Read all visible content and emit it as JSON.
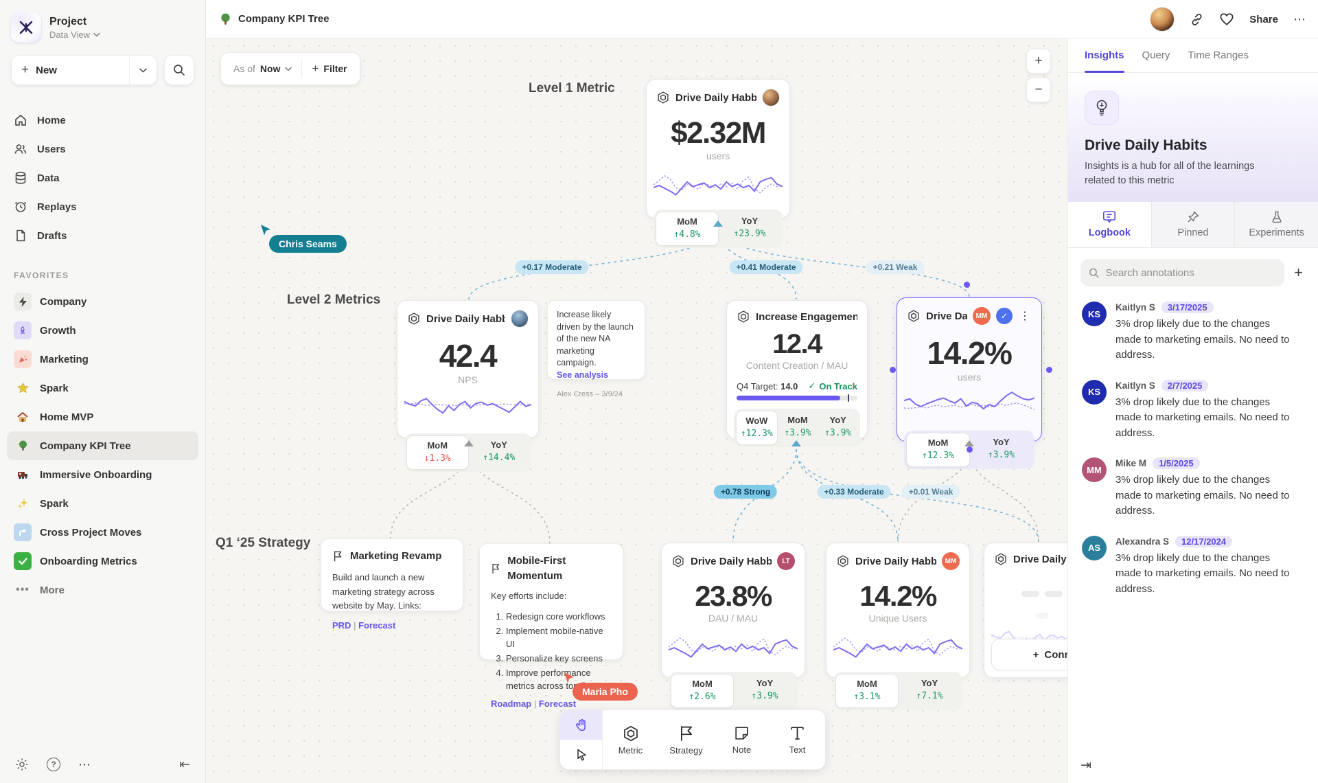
{
  "topbar": {
    "title": "Company KPI Tree",
    "share_label": "Share",
    "more_label": "⋯",
    "icons": [
      "tree-icon",
      "avatar",
      "link-icon",
      "heart-icon",
      "ellipsis-icon"
    ]
  },
  "sidebar": {
    "project": {
      "name": "Project",
      "view": "Data View"
    },
    "new_button": {
      "label": "New",
      "plus": "+"
    },
    "nav": [
      {
        "icon": "home-icon",
        "label": "Home"
      },
      {
        "icon": "users-icon",
        "label": "Users"
      },
      {
        "icon": "database-icon",
        "label": "Data"
      },
      {
        "icon": "replay-clock-icon",
        "label": "Replays"
      },
      {
        "icon": "file-icon",
        "label": "Drafts"
      }
    ],
    "favorites_label": "FAVORITES",
    "favorites": [
      {
        "icon": "lightning-icon",
        "label": "Company"
      },
      {
        "icon": "rocket-icon",
        "label": "Growth"
      },
      {
        "icon": "confetti-icon",
        "label": "Marketing"
      },
      {
        "icon": "star-icon",
        "label": "Spark"
      },
      {
        "icon": "house-icon",
        "label": "Home MVP"
      },
      {
        "icon": "tree-icon",
        "label": "Company KPI Tree"
      },
      {
        "icon": "train-icon",
        "label": "Immersive Onboarding"
      },
      {
        "icon": "sparkles-icon",
        "label": "Spark"
      },
      {
        "icon": "curved-arrow-icon",
        "label": "Cross Project Moves"
      },
      {
        "icon": "check-icon",
        "label": "Onboarding Metrics"
      }
    ],
    "more_label": "More"
  },
  "canvas": {
    "asof": {
      "prefix": "As of",
      "value": "Now"
    },
    "filter": {
      "plus": "+",
      "label": "Filter"
    },
    "zoom": {
      "in": "+",
      "out": "−"
    },
    "labels": {
      "level1": "Level 1 Metric",
      "level2": "Level 2 Metrics",
      "q1": "Q1 ‘25 Strategy"
    },
    "cursors": [
      {
        "name": "Chris Seams",
        "color": "#157f92"
      },
      {
        "name": "Maria Pho",
        "color": "#ea6450"
      }
    ],
    "edges": [
      {
        "text": "+0.17 Moderate"
      },
      {
        "text": "+0.41 Moderate"
      },
      {
        "text": "+0.21 Weak"
      },
      {
        "text": "+0.78 Strong"
      },
      {
        "text": "+0.33 Moderate"
      },
      {
        "text": "+0.01 Weak"
      }
    ],
    "cards": {
      "level1": {
        "title": "Drive Daily Habbits",
        "value": "$2.32M",
        "unit": "users",
        "stats": [
          {
            "label": "MoM",
            "value": "↑4.8%",
            "trend": "up"
          },
          {
            "label": "YoY",
            "value": "↑23.9%",
            "trend": "up"
          }
        ]
      },
      "nps": {
        "title": "Drive Daily Habbits",
        "value": "42.4",
        "unit": "NPS",
        "stats": [
          {
            "label": "MoM",
            "value": "↓1.3%",
            "trend": "down"
          },
          {
            "label": "YoY",
            "value": "↑14.4%",
            "trend": "up"
          }
        ]
      },
      "note": {
        "body": "Increase likely driven by the launch of the new NA marketing campaign.",
        "link": "See analysis",
        "author": "Alex Cress – 3/9/24"
      },
      "engagement": {
        "title": "Increase Engagement",
        "value": "12.4",
        "unit": "Content Creation / MAU",
        "target_prefix": "Q4 Target:",
        "target_value": "14.0",
        "status": "On Track",
        "status_check": "✓",
        "progress_pct": 86,
        "stats": [
          {
            "label": "WoW",
            "value": "↑12.3%",
            "trend": "up"
          },
          {
            "label": "MoM",
            "value": "↑3.9%",
            "trend": "up"
          },
          {
            "label": "YoY",
            "value": "↑3.9%",
            "trend": "up"
          }
        ]
      },
      "selected": {
        "title": "Drive Daily Habb..",
        "owner_badge": "MM",
        "badge_color": "#ef6a4e",
        "value": "14.2%",
        "unit": "users",
        "verified_check": "✓",
        "kebab": "⋮",
        "stats": [
          {
            "label": "MoM",
            "value": "↑12.3%",
            "trend": "up"
          },
          {
            "label": "YoY",
            "value": "↑3.9%",
            "trend": "up"
          }
        ]
      },
      "marketing_revamp": {
        "title": "Marketing Revamp",
        "body": "Build and launch a new marketing strategy across website by May. Links:",
        "links": [
          "PRD",
          "Forecast"
        ],
        "link_sep": "|"
      },
      "mobile_first": {
        "title": "Mobile-First Momentum",
        "intro": "Key efforts include:",
        "items": [
          "Redesign core workflows",
          "Implement mobile-native UI",
          "Personalize key screens",
          "Improve performance metrics across top flows"
        ],
        "links": [
          "Roadmap",
          "Forecast"
        ],
        "link_sep": "|"
      },
      "dau": {
        "title": "Drive Daily Habbits",
        "owner_badge": "LT",
        "badge_color": "#b64f6b",
        "value": "23.8%",
        "unit": "DAU / MAU",
        "stats": [
          {
            "label": "MoM",
            "value": "↑2.6%",
            "trend": "up"
          },
          {
            "label": "YoY",
            "value": "↑3.9%",
            "trend": "up"
          }
        ]
      },
      "unique": {
        "title": "Drive Daily Habbits",
        "owner_badge": "MM",
        "badge_color": "#ef6a4e",
        "value": "14.2%",
        "unit": "Unique Users",
        "stats": [
          {
            "label": "MoM",
            "value": "↑3.1%",
            "trend": "up"
          },
          {
            "label": "YoY",
            "value": "↑7.1%",
            "trend": "up"
          }
        ]
      },
      "partial": {
        "title": "Drive Daily Hab",
        "connect_plus": "+",
        "connect_label": "Connect"
      }
    },
    "toolbar": {
      "tools": [
        {
          "icon": "hexagon-metric-icon",
          "label": "Metric"
        },
        {
          "icon": "flag-icon",
          "label": "Strategy"
        },
        {
          "icon": "note-icon",
          "label": "Note"
        },
        {
          "icon": "text-icon",
          "label": "Text"
        }
      ]
    },
    "sparklines": {
      "a": {
        "solid": [
          58,
          52,
          60,
          68,
          78,
          60,
          42,
          55,
          50,
          45,
          58,
          50,
          62,
          42,
          55,
          48,
          58,
          52,
          68,
          42,
          35,
          30,
          48,
          55
        ],
        "dashed": [
          50,
          38,
          25,
          35,
          58,
          65,
          50,
          55,
          62,
          45,
          52,
          58,
          48,
          55,
          45,
          62,
          38,
          28,
          62,
          72,
          58,
          48,
          55,
          52
        ]
      },
      "b": {
        "solid": [
          30,
          38,
          42,
          28,
          22,
          38,
          52,
          62,
          42,
          55,
          38,
          30,
          48,
          35,
          32,
          40,
          36,
          44,
          52,
          60,
          45,
          30,
          44,
          38
        ],
        "dashed": [
          36,
          37,
          35,
          38,
          41,
          39,
          38,
          40,
          39,
          41,
          40,
          39,
          41,
          40,
          39,
          40,
          38,
          39,
          37,
          38,
          39,
          40,
          37,
          38
        ]
      },
      "c": {
        "solid": [
          35,
          30,
          45,
          52,
          44,
          38,
          32,
          28,
          36,
          42,
          30,
          50,
          40,
          44,
          58,
          46,
          52,
          36,
          22,
          12,
          22,
          30,
          33,
          28
        ],
        "dashed": [
          56,
          57,
          55,
          52,
          56,
          50,
          48,
          53,
          50,
          48,
          53,
          50,
          46,
          51,
          48,
          53,
          50,
          45,
          49,
          44,
          42,
          47,
          53,
          60
        ]
      }
    }
  },
  "panel": {
    "tabs": [
      {
        "label": "Insights"
      },
      {
        "label": "Query"
      },
      {
        "label": "Time Ranges"
      }
    ],
    "header": {
      "icon": "lightbulb-icon",
      "title": "Drive Daily Habits",
      "subtitle": "Insights is a hub for all of the learnings related to this metric"
    },
    "subtabs": [
      {
        "icon": "logbook-icon",
        "label": "Logbook"
      },
      {
        "icon": "pin-icon",
        "label": "Pinned"
      },
      {
        "icon": "flask-icon",
        "label": "Experiments"
      }
    ],
    "search": {
      "placeholder": "Search annotations",
      "add": "+"
    },
    "annotations": [
      {
        "initials": "KS",
        "color": "#1e2cad",
        "name": "Kaitlyn S",
        "date": "3/17/2025",
        "text": "3% drop likely due to the changes made to marketing emails. No need to address."
      },
      {
        "initials": "KS",
        "color": "#1e2cad",
        "name": "Kaitlyn S",
        "date": "2/7/2025",
        "text": "3% drop likely due to the changes made to marketing emails. No need to address."
      },
      {
        "initials": "MM",
        "color": "#b25476",
        "name": "Mike M",
        "date": "1/5/2025",
        "text": "3% drop likely due to the changes made to marketing emails. No need to address."
      },
      {
        "initials": "AS",
        "color": "#2b7f9b",
        "name": "Alexandra S",
        "date": "12/17/2024",
        "text": "3% drop likely due to the changes made to marketing emails. No need to address."
      }
    ],
    "collapse_icon": "⇥"
  }
}
